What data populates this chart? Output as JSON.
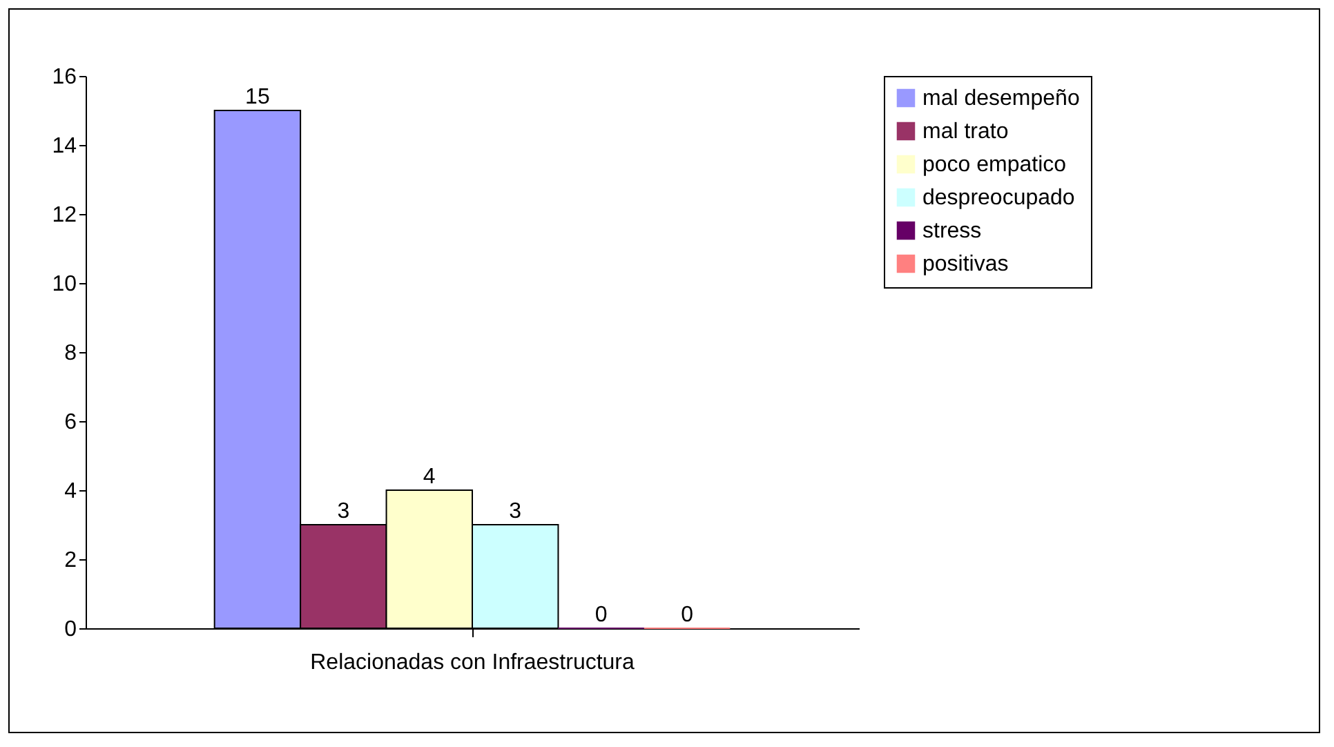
{
  "chart_data": {
    "type": "bar",
    "categories": [
      "Relacionadas con Infraestructura"
    ],
    "series": [
      {
        "name": "mal desempeño",
        "color": "#9999ff",
        "values": [
          15
        ]
      },
      {
        "name": "mal trato",
        "color": "#993366",
        "values": [
          3
        ]
      },
      {
        "name": "poco empatico",
        "color": "#ffffcc",
        "values": [
          4
        ]
      },
      {
        "name": "despreocupado",
        "color": "#ccffff",
        "values": [
          3
        ]
      },
      {
        "name": "stress",
        "color": "#660066",
        "values": [
          0
        ]
      },
      {
        "name": "positivas",
        "color": "#ff8080",
        "values": [
          0
        ]
      }
    ],
    "ylim": [
      0,
      16
    ],
    "yticks": [
      0,
      2,
      4,
      6,
      8,
      10,
      12,
      14,
      16
    ],
    "data_labels": true,
    "legend": "right",
    "grid": false
  }
}
